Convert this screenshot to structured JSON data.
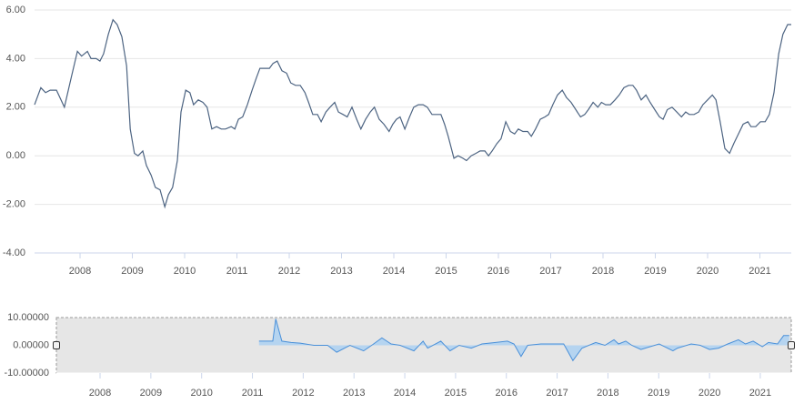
{
  "chart_data": [
    {
      "type": "line",
      "color": "#4d6482",
      "grid": true,
      "xlim": [
        2007.13,
        2021.6
      ],
      "xticks": [
        2008,
        2009,
        2010,
        2011,
        2012,
        2013,
        2014,
        2015,
        2016,
        2017,
        2018,
        2019,
        2020,
        2021
      ],
      "ylim": [
        -4,
        6
      ],
      "yticks": [
        {
          "value": -4,
          "label": "-4.00"
        },
        {
          "value": -2,
          "label": "-2.00"
        },
        {
          "value": 0,
          "label": "0.00"
        },
        {
          "value": 2,
          "label": "2.00"
        },
        {
          "value": 4,
          "label": "4.00"
        },
        {
          "value": 6,
          "label": "6.00"
        }
      ],
      "x": [
        2007.13,
        2007.25,
        2007.34,
        2007.43,
        2007.55,
        2007.7,
        2007.83,
        2007.95,
        2008.03,
        2008.14,
        2008.21,
        2008.31,
        2008.38,
        2008.45,
        2008.54,
        2008.63,
        2008.71,
        2008.8,
        2008.89,
        2008.96,
        2009.04,
        2009.11,
        2009.2,
        2009.27,
        2009.36,
        2009.44,
        2009.53,
        2009.62,
        2009.69,
        2009.77,
        2009.86,
        2009.93,
        2010.02,
        2010.1,
        2010.17,
        2010.26,
        2010.35,
        2010.43,
        2010.52,
        2010.61,
        2010.7,
        2010.78,
        2010.89,
        2010.96,
        2011.03,
        2011.11,
        2011.2,
        2011.29,
        2011.37,
        2011.44,
        2011.53,
        2011.62,
        2011.69,
        2011.77,
        2011.86,
        2011.95,
        2012.03,
        2012.12,
        2012.21,
        2012.3,
        2012.37,
        2012.45,
        2012.54,
        2012.61,
        2012.7,
        2012.78,
        2012.87,
        2012.94,
        2013.03,
        2013.11,
        2013.2,
        2013.29,
        2013.37,
        2013.46,
        2013.55,
        2013.63,
        2013.72,
        2013.81,
        2013.91,
        2013.98,
        2014.05,
        2014.12,
        2014.21,
        2014.3,
        2014.38,
        2014.47,
        2014.56,
        2014.64,
        2014.73,
        2014.82,
        2014.9,
        2014.97,
        2015.04,
        2015.15,
        2015.23,
        2015.32,
        2015.39,
        2015.48,
        2015.57,
        2015.65,
        2015.74,
        2015.81,
        2015.88,
        2015.97,
        2016.05,
        2016.14,
        2016.23,
        2016.31,
        2016.38,
        2016.47,
        2016.56,
        2016.63,
        2016.71,
        2016.8,
        2016.89,
        2016.96,
        2017.04,
        2017.13,
        2017.22,
        2017.3,
        2017.39,
        2017.48,
        2017.57,
        2017.65,
        2017.72,
        2017.81,
        2017.9,
        2017.97,
        2018.05,
        2018.14,
        2018.23,
        2018.31,
        2018.4,
        2018.49,
        2018.57,
        2018.64,
        2018.73,
        2018.82,
        2018.9,
        2018.99,
        2019.08,
        2019.15,
        2019.23,
        2019.32,
        2019.41,
        2019.5,
        2019.58,
        2019.65,
        2019.74,
        2019.83,
        2019.91,
        2020.0,
        2020.09,
        2020.16,
        2020.24,
        2020.33,
        2020.42,
        2020.5,
        2020.59,
        2020.68,
        2020.77,
        2020.83,
        2020.92,
        2021.01,
        2021.1,
        2021.18,
        2021.27,
        2021.36,
        2021.44,
        2021.53,
        2021.6
      ],
      "values": [
        2.1,
        2.8,
        2.6,
        2.7,
        2.7,
        2.0,
        3.2,
        4.3,
        4.1,
        4.3,
        4.0,
        4.0,
        3.9,
        4.2,
        5.0,
        5.6,
        5.4,
        4.9,
        3.7,
        1.1,
        0.1,
        0.0,
        0.2,
        -0.4,
        -0.8,
        -1.3,
        -1.4,
        -2.1,
        -1.6,
        -1.3,
        -0.2,
        1.8,
        2.7,
        2.6,
        2.1,
        2.3,
        2.2,
        2.0,
        1.1,
        1.2,
        1.1,
        1.1,
        1.2,
        1.1,
        1.5,
        1.6,
        2.1,
        2.7,
        3.2,
        3.6,
        3.6,
        3.6,
        3.8,
        3.9,
        3.5,
        3.4,
        3.0,
        2.9,
        2.9,
        2.6,
        2.2,
        1.7,
        1.7,
        1.4,
        1.8,
        2.0,
        2.2,
        1.8,
        1.7,
        1.6,
        2.0,
        1.5,
        1.1,
        1.5,
        1.8,
        2.0,
        1.5,
        1.3,
        1.0,
        1.3,
        1.5,
        1.6,
        1.1,
        1.6,
        2.0,
        2.1,
        2.1,
        2.0,
        1.7,
        1.7,
        1.7,
        1.3,
        0.8,
        -0.1,
        0.0,
        -0.1,
        -0.2,
        0.0,
        0.1,
        0.2,
        0.2,
        0.0,
        0.2,
        0.5,
        0.7,
        1.4,
        1.0,
        0.9,
        1.1,
        1.0,
        1.0,
        0.8,
        1.1,
        1.5,
        1.6,
        1.7,
        2.1,
        2.5,
        2.7,
        2.4,
        2.2,
        1.9,
        1.6,
        1.7,
        1.9,
        2.2,
        2.0,
        2.2,
        2.1,
        2.1,
        2.3,
        2.5,
        2.8,
        2.9,
        2.9,
        2.7,
        2.3,
        2.5,
        2.2,
        1.9,
        1.6,
        1.5,
        1.9,
        2.0,
        1.8,
        1.6,
        1.8,
        1.7,
        1.7,
        1.8,
        2.1,
        2.3,
        2.5,
        2.3,
        1.4,
        0.3,
        0.1,
        0.5,
        0.9,
        1.3,
        1.4,
        1.2,
        1.2,
        1.4,
        1.4,
        1.7,
        2.6,
        4.2,
        5.0,
        5.4,
        5.4
      ]
    },
    {
      "type": "area",
      "color": "#4a90d9",
      "fill": "#a9cff2",
      "grid": false,
      "xlim": [
        2007.14,
        2021.61
      ],
      "xticks": [
        2008,
        2009,
        2010,
        2011,
        2012,
        2013,
        2014,
        2015,
        2016,
        2017,
        2018,
        2019,
        2020,
        2021
      ],
      "ylim": [
        -10,
        10
      ],
      "yticks": [
        {
          "value": -10,
          "label": "-10.00000"
        },
        {
          "value": 0,
          "label": "0.00000"
        },
        {
          "value": 10,
          "label": "10.00000"
        }
      ],
      "x": [
        2011.13,
        2011.4,
        2011.46,
        2011.58,
        2011.76,
        2011.94,
        2012.21,
        2012.48,
        2012.66,
        2012.92,
        2013.19,
        2013.37,
        2013.55,
        2013.73,
        2013.91,
        2014.18,
        2014.36,
        2014.45,
        2014.71,
        2014.89,
        2015.07,
        2015.31,
        2015.52,
        2015.79,
        2016.02,
        2016.15,
        2016.29,
        2016.42,
        2016.68,
        2016.99,
        2017.13,
        2017.31,
        2017.49,
        2017.76,
        2017.94,
        2018.12,
        2018.21,
        2018.35,
        2018.47,
        2018.65,
        2018.83,
        2019.01,
        2019.28,
        2019.37,
        2019.64,
        2019.82,
        2020.0,
        2020.18,
        2020.36,
        2020.57,
        2020.71,
        2020.86,
        2021.04,
        2021.16,
        2021.34,
        2021.46,
        2021.57
      ],
      "values": [
        1.5,
        1.5,
        9.5,
        1.5,
        1,
        0.8,
        0,
        0,
        -2.5,
        0,
        -2,
        0.3,
        2.7,
        0.5,
        0,
        -2,
        1.5,
        -1,
        1.5,
        -2,
        0,
        -1,
        0.5,
        1,
        1.5,
        0.5,
        -4,
        0,
        0.5,
        0.5,
        0.5,
        -5.5,
        -1,
        1,
        0,
        2,
        0.5,
        1.5,
        0,
        -1.5,
        -0.5,
        0.5,
        -2,
        -1,
        0.5,
        0,
        -1.5,
        -1,
        0.5,
        2,
        0.5,
        1.5,
        -0.5,
        1,
        0.5,
        3.5,
        3.5
      ]
    }
  ]
}
